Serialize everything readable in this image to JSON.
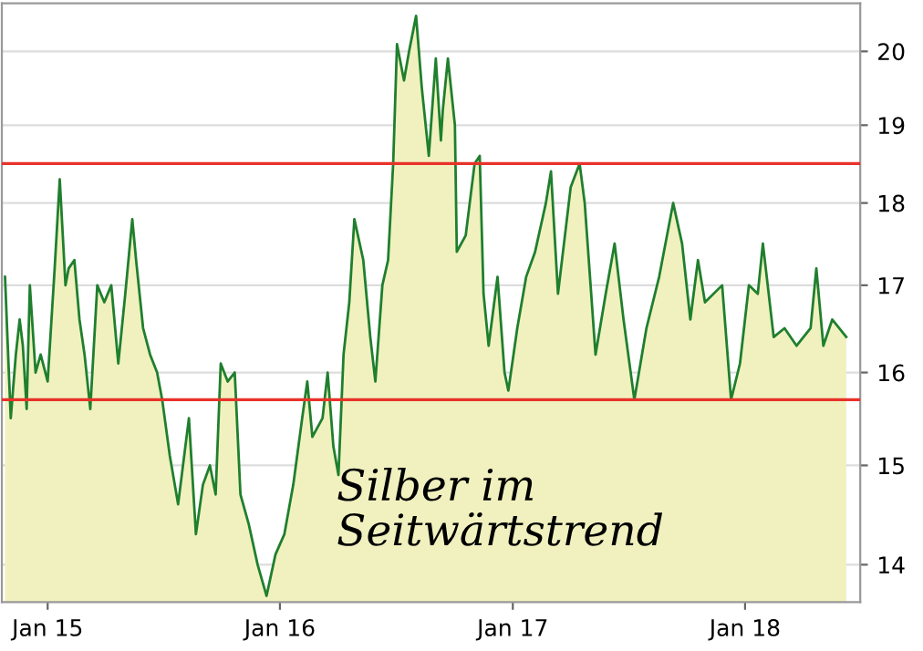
{
  "chart_data": {
    "type": "area",
    "log": true,
    "grid": "y",
    "xlim": [
      "2014-10-21",
      "2018-07-01"
    ],
    "xticks": [
      {
        "value": "2015-01-01",
        "label": "Jan 15"
      },
      {
        "value": "2016-01-01",
        "label": "Jan 16"
      },
      {
        "value": "2017-01-01",
        "label": "Jan 17"
      },
      {
        "value": "2018-01-01",
        "label": "Jan 18"
      }
    ],
    "ylim": [
      13.64,
      20.68
    ],
    "yticks": [
      14,
      15,
      16,
      17,
      18,
      19,
      20
    ],
    "ref_lines": [
      {
        "axis": "y",
        "value": 18.5,
        "label": null,
        "color": "#e8322a"
      },
      {
        "axis": "y",
        "value": 15.7,
        "label": null,
        "color": "#e8322a"
      }
    ],
    "annotations": [
      "Silber im\nSeitwärtstrend"
    ],
    "series": [
      {
        "color": "#1f7f2e",
        "x": [
          "2014-10-26",
          "2014-11-01",
          "2014-11-04",
          "2014-11-12",
          "2014-11-18",
          "2014-11-23",
          "2014-11-29",
          "2014-12-04",
          "2014-12-13",
          "2014-12-21",
          "2015-01-01",
          "2015-01-12",
          "2015-01-20",
          "2015-01-29",
          "2015-02-03",
          "2015-02-12",
          "2015-02-20",
          "2015-02-28",
          "2015-03-09",
          "2015-03-20",
          "2015-03-31",
          "2015-04-11",
          "2015-04-22",
          "2015-05-03",
          "2015-05-14",
          "2015-05-20",
          "2015-05-31",
          "2015-06-11",
          "2015-06-22",
          "2015-06-30",
          "2015-07-12",
          "2015-07-25",
          "2015-08-11",
          "2015-08-22",
          "2015-09-02",
          "2015-09-13",
          "2015-09-22",
          "2015-09-30",
          "2015-10-11",
          "2015-10-22",
          "2015-10-31",
          "2015-11-13",
          "2015-11-27",
          "2015-12-11",
          "2015-12-25",
          "2016-01-08",
          "2016-01-22",
          "2016-02-05",
          "2016-02-13",
          "2016-02-21",
          "2016-03-08",
          "2016-03-16",
          "2016-03-25",
          "2016-04-02",
          "2016-04-10",
          "2016-04-19",
          "2016-04-27",
          "2016-05-11",
          "2016-05-22",
          "2016-05-30",
          "2016-06-10",
          "2016-06-19",
          "2016-06-27",
          "2016-07-03",
          "2016-07-14",
          "2016-07-22",
          "2016-08-02",
          "2016-08-11",
          "2016-08-22",
          "2016-09-02",
          "2016-09-10",
          "2016-09-13",
          "2016-09-21",
          "2016-10-02",
          "2016-10-05",
          "2016-10-19",
          "2016-11-02",
          "2016-11-10",
          "2016-11-16",
          "2016-11-24",
          "2016-12-08",
          "2016-12-19",
          "2016-12-25",
          "2017-01-08",
          "2017-01-22",
          "2017-02-05",
          "2017-02-22",
          "2017-03-02",
          "2017-03-13",
          "2017-04-02",
          "2017-04-16",
          "2017-04-24",
          "2017-05-11",
          "2017-05-27",
          "2017-06-10",
          "2017-06-24",
          "2017-07-11",
          "2017-07-30",
          "2017-08-19",
          "2017-09-10",
          "2017-09-24",
          "2017-10-07",
          "2017-10-19",
          "2017-10-30",
          "2017-11-26",
          "2017-12-10",
          "2017-12-24",
          "2018-01-07",
          "2018-01-21",
          "2018-01-29",
          "2018-02-15",
          "2018-03-04",
          "2018-03-23",
          "2018-04-14",
          "2018-04-23",
          "2018-05-04",
          "2018-05-18",
          "2018-06-09"
        ],
        "values": [
          17.1,
          16.0,
          15.5,
          16.2,
          16.6,
          16.3,
          15.6,
          17.0,
          16.0,
          16.2,
          15.9,
          17.2,
          18.3,
          17.0,
          17.2,
          17.3,
          16.6,
          16.2,
          15.6,
          17.0,
          16.8,
          17.0,
          16.1,
          16.9,
          17.8,
          17.3,
          16.5,
          16.2,
          16.0,
          15.7,
          15.1,
          14.6,
          15.5,
          14.3,
          14.8,
          15.0,
          14.7,
          16.1,
          15.9,
          16.0,
          14.7,
          14.4,
          14.0,
          13.7,
          14.1,
          14.3,
          14.8,
          15.5,
          15.9,
          15.3,
          15.5,
          16.0,
          15.2,
          14.9,
          16.2,
          16.8,
          17.8,
          17.3,
          16.4,
          15.9,
          17.0,
          17.3,
          18.5,
          20.1,
          19.6,
          20.0,
          20.5,
          19.5,
          18.6,
          19.9,
          18.8,
          19.2,
          19.9,
          19.0,
          17.4,
          17.6,
          18.5,
          18.6,
          16.9,
          16.3,
          17.1,
          16.0,
          15.8,
          16.5,
          17.1,
          17.4,
          18.0,
          18.4,
          16.9,
          18.2,
          18.5,
          18.0,
          16.2,
          16.9,
          17.5,
          16.6,
          15.7,
          16.5,
          17.1,
          18.0,
          17.5,
          16.6,
          17.3,
          16.8,
          17.0,
          15.7,
          16.1,
          17.0,
          16.9,
          17.5,
          16.4,
          16.5,
          16.3,
          16.5,
          17.2,
          16.3,
          16.6,
          16.4
        ]
      }
    ]
  }
}
